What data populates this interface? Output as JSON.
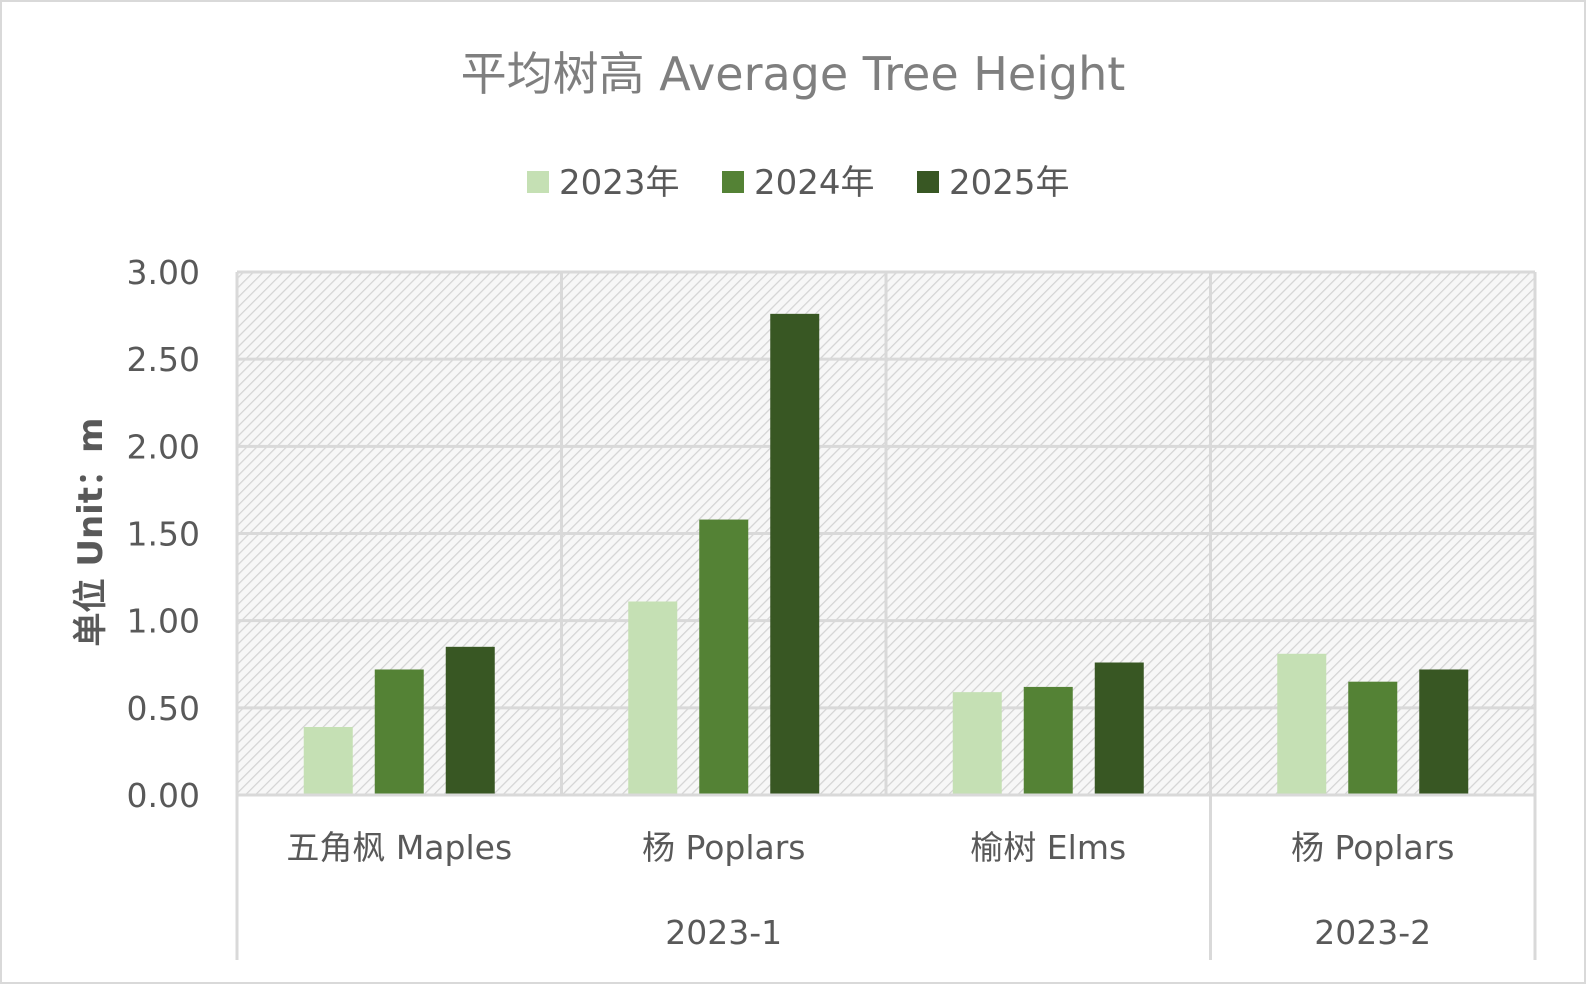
{
  "chart_data": {
    "type": "bar",
    "title": "平均树高 Average Tree Height",
    "ylabel": "单位 Unit：m",
    "xlabel": "",
    "ylim": [
      0,
      3
    ],
    "yticks": [
      "0.00",
      "0.50",
      "1.00",
      "1.50",
      "2.00",
      "2.50",
      "3.00"
    ],
    "grid": true,
    "legend_position": "top-center",
    "categories": [
      "五角枫 Maples",
      "杨 Poplars",
      "榆树 Elms",
      "杨 Poplars"
    ],
    "groups": [
      {
        "label": "2023-1",
        "span": 3
      },
      {
        "label": "2023-2",
        "span": 1
      }
    ],
    "series": [
      {
        "name": "2023年",
        "color": "#c5e0b4",
        "values": [
          0.39,
          1.11,
          0.59,
          0.81
        ]
      },
      {
        "name": "2024年",
        "color": "#548235",
        "values": [
          0.72,
          1.58,
          0.62,
          0.65
        ]
      },
      {
        "name": "2025年",
        "color": "#385723",
        "values": [
          0.85,
          2.76,
          0.76,
          0.72
        ]
      }
    ]
  }
}
